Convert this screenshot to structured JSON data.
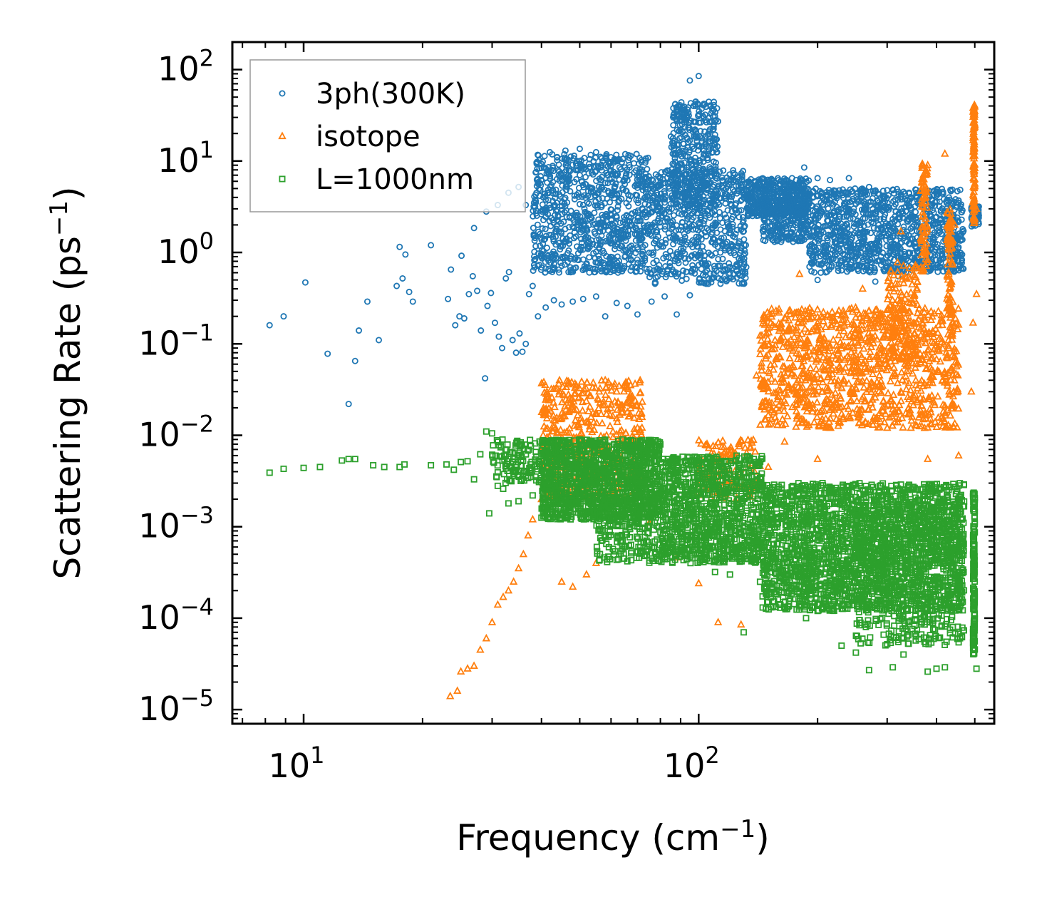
{
  "chart_data": {
    "type": "scatter",
    "title": "",
    "xlabel": "Frequency (cm",
    "xlabel_exp": "−1",
    "xlabel_end": ")",
    "ylabel": "Scattering Rate (ps",
    "ylabel_exp": "−1",
    "ylabel_end": ")",
    "xscale": "log",
    "yscale": "log",
    "xlim": [
      6.6,
      560
    ],
    "ylim": [
      7e-06,
      200
    ],
    "legend_position": "top-left",
    "x_ticks": [
      {
        "base": "10",
        "exp": "1",
        "value": 10
      },
      {
        "base": "10",
        "exp": "2",
        "value": 100
      }
    ],
    "y_ticks": [
      {
        "base": "10",
        "exp": "2",
        "value": 100
      },
      {
        "base": "10",
        "exp": "1",
        "value": 10
      },
      {
        "base": "10",
        "exp": "0",
        "value": 1
      },
      {
        "base": "10",
        "exp": "−1",
        "value": 0.1
      },
      {
        "base": "10",
        "exp": "−2",
        "value": 0.01
      },
      {
        "base": "10",
        "exp": "−3",
        "value": 0.001
      },
      {
        "base": "10",
        "exp": "−4",
        "value": 0.0001
      },
      {
        "base": "10",
        "exp": "−5",
        "value": 1e-05
      }
    ],
    "series": [
      {
        "name": "3ph(300K)",
        "marker": "circle",
        "color": "#1f77b4",
        "points": [
          [
            8.2,
            0.16
          ],
          [
            8.9,
            0.2
          ],
          [
            10.1,
            0.47
          ],
          [
            11.5,
            0.078
          ],
          [
            13,
            0.022
          ],
          [
            13.5,
            0.065
          ],
          [
            13.8,
            0.14
          ],
          [
            14.5,
            0.29
          ],
          [
            15.5,
            0.11
          ],
          [
            17.2,
            0.43
          ],
          [
            17.5,
            1.15
          ],
          [
            17.8,
            0.52
          ],
          [
            18.1,
            0.95
          ],
          [
            18.5,
            0.37
          ],
          [
            18.9,
            0.29
          ],
          [
            21,
            1.2
          ],
          [
            23.2,
            0.31
          ],
          [
            23.6,
            0.65
          ],
          [
            24.2,
            0.16
          ],
          [
            24.8,
            0.2
          ],
          [
            25.1,
            0.92
          ],
          [
            25.5,
            0.19
          ],
          [
            26.2,
            0.35
          ],
          [
            26.8,
            0.55
          ],
          [
            27.5,
            0.38
          ],
          [
            28.1,
            0.14
          ],
          [
            28.8,
            0.042
          ],
          [
            29.2,
            0.26
          ],
          [
            29.8,
            0.36
          ],
          [
            30.5,
            0.17
          ],
          [
            31.2,
            0.12
          ],
          [
            31.8,
            0.09
          ],
          [
            32.5,
            0.52
          ],
          [
            33.1,
            0.61
          ],
          [
            33.8,
            0.11
          ],
          [
            34.5,
            0.08
          ],
          [
            35.2,
            0.13
          ],
          [
            35.8,
            0.082
          ],
          [
            36.5,
            0.1
          ],
          [
            37.2,
            0.35
          ],
          [
            38,
            0.43
          ],
          [
            39.2,
            0.2
          ],
          [
            41,
            0.25
          ],
          [
            43,
            0.3
          ],
          [
            45,
            0.27
          ],
          [
            48,
            0.29
          ],
          [
            51,
            0.31
          ],
          [
            55,
            0.33
          ],
          [
            58,
            0.2
          ],
          [
            62,
            0.28
          ],
          [
            66,
            0.26
          ],
          [
            70,
            0.21
          ],
          [
            76,
            0.29
          ],
          [
            82,
            0.33
          ],
          [
            88,
            0.21
          ],
          [
            95,
            0.34
          ],
          [
            105,
            0.64
          ],
          [
            115,
            0.85
          ],
          [
            125,
            0.72
          ],
          [
            95,
            76
          ],
          [
            100,
            85
          ],
          [
            103,
            30
          ],
          [
            90,
            22
          ],
          [
            86,
            12
          ],
          [
            110,
            15
          ],
          [
            27,
            1.85
          ],
          [
            29,
            2.8
          ],
          [
            31,
            3.3
          ],
          [
            33,
            4.5
          ],
          [
            35,
            5.2
          ],
          [
            36.5,
            3.3
          ],
          [
            39,
            9.8
          ],
          [
            42,
            12.5
          ],
          [
            46,
            13
          ],
          [
            50,
            13.6
          ],
          [
            55,
            12.5
          ],
          [
            60,
            11
          ],
          [
            65,
            8.5
          ],
          [
            70,
            5.1
          ],
          [
            80,
            6.6
          ],
          [
            100,
            8.5
          ],
          [
            115,
            6.0
          ],
          [
            140,
            5.2
          ],
          [
            160,
            5.5
          ],
          [
            185,
            8.5
          ],
          [
            200,
            6.5
          ],
          [
            215,
            6.2
          ],
          [
            240,
            6.5
          ],
          [
            270,
            5.2
          ],
          [
            300,
            4.8
          ],
          [
            330,
            4.6
          ],
          [
            370,
            4.2
          ],
          [
            400,
            4.4
          ],
          [
            430,
            4.0
          ],
          [
            455,
            3.7
          ],
          [
            497,
            3.5
          ],
          [
            505,
            2.9
          ],
          [
            510,
            3.1
          ],
          [
            280,
            0.48
          ],
          [
            320,
            0.55
          ],
          [
            200,
            0.5
          ],
          [
            380,
            0.62
          ],
          [
            440,
            0.8
          ]
        ],
        "bands": [
          {
            "x_from": 38,
            "x_to": 75,
            "y_lo": 0.6,
            "y_hi": 12,
            "n": 900
          },
          {
            "x_from": 75,
            "x_to": 132,
            "y_lo": 0.45,
            "y_hi": 8,
            "n": 650
          },
          {
            "x_from": 85,
            "x_to": 112,
            "y_lo": 3,
            "y_hi": 45,
            "n": 380
          },
          {
            "x_from": 132,
            "x_to": 190,
            "y_lo": 2.5,
            "y_hi": 6.5,
            "n": 420
          },
          {
            "x_from": 145,
            "x_to": 190,
            "y_lo": 1.3,
            "y_hi": 4,
            "n": 260
          },
          {
            "x_from": 190,
            "x_to": 470,
            "y_lo": 0.6,
            "y_hi": 5.0,
            "n": 1100
          },
          {
            "x_from": 490,
            "x_to": 512,
            "y_lo": 1.9,
            "y_hi": 3.2,
            "n": 70
          }
        ]
      },
      {
        "name": "isotope",
        "marker": "triangle",
        "color": "#ff7f0e",
        "points": [
          [
            23.5,
            1.4e-05
          ],
          [
            24.5,
            1.6e-05
          ],
          [
            25,
            2.6e-05
          ],
          [
            26,
            2.8e-05
          ],
          [
            27,
            3e-05
          ],
          [
            28,
            4.5e-05
          ],
          [
            29,
            6e-05
          ],
          [
            30,
            9e-05
          ],
          [
            31,
            0.00014
          ],
          [
            32,
            0.00017
          ],
          [
            33,
            0.0002
          ],
          [
            34,
            0.00025
          ],
          [
            35,
            0.00035
          ],
          [
            36,
            0.0005
          ],
          [
            37,
            0.0008
          ],
          [
            38,
            0.0012
          ],
          [
            40,
            0.002
          ],
          [
            42,
            0.0035
          ],
          [
            45,
            0.006
          ],
          [
            50,
            0.01
          ],
          [
            55,
            0.017
          ],
          [
            58,
            0.04
          ],
          [
            62,
            0.03
          ],
          [
            66,
            0.018
          ],
          [
            70,
            0.012
          ],
          [
            45,
            0.00025
          ],
          [
            48,
            0.00022
          ],
          [
            52,
            0.0003
          ],
          [
            55,
            0.0004
          ],
          [
            140,
            0.045
          ],
          [
            150,
            0.05
          ],
          [
            180,
            0.58
          ],
          [
            200,
            0.15
          ],
          [
            260,
            0.4
          ],
          [
            325,
            1.7
          ],
          [
            380,
            9
          ],
          [
            420,
            12
          ],
          [
            445,
            2.0
          ],
          [
            495,
            38
          ],
          [
            500,
            25
          ],
          [
            505,
            3
          ],
          [
            495,
            0.17
          ],
          [
            505,
            0.35
          ],
          [
            490,
            0.03
          ],
          [
            455,
            0.006
          ],
          [
            420,
            0.021
          ],
          [
            380,
            0.0055
          ],
          [
            320,
            0.015
          ],
          [
            280,
            0.015
          ],
          [
            200,
            0.0055
          ],
          [
            165,
            0.0085
          ],
          [
            150,
            0.0045
          ],
          [
            143,
            0.0046
          ],
          [
            135,
            0.0027
          ],
          [
            128,
            8.5e-05
          ],
          [
            112,
            9e-05
          ],
          [
            100,
            0.00024
          ],
          [
            88,
            0.00046
          ],
          [
            75,
            0.0011
          ]
        ],
        "bands": [
          {
            "x_from": 40,
            "x_to": 72,
            "y_lo": 0.002,
            "y_hi": 0.04,
            "n": 500
          },
          {
            "x_from": 100,
            "x_to": 140,
            "y_lo": 0.002,
            "y_hi": 0.009,
            "n": 120
          },
          {
            "x_from": 143,
            "x_to": 455,
            "y_lo": 0.012,
            "y_hi": 0.25,
            "n": 1100
          },
          {
            "x_from": 300,
            "x_to": 360,
            "y_lo": 0.06,
            "y_hi": 0.8,
            "n": 140
          },
          {
            "x_from": 365,
            "x_to": 380,
            "y_lo": 0.6,
            "y_hi": 10,
            "n": 80
          },
          {
            "x_from": 425,
            "x_to": 440,
            "y_lo": 0.2,
            "y_hi": 3,
            "n": 80
          },
          {
            "x_from": 495,
            "x_to": 500,
            "y_lo": 2,
            "y_hi": 42,
            "n": 110
          }
        ]
      },
      {
        "name": "L=1000nm",
        "marker": "square",
        "color": "#2ca02c",
        "points": [
          [
            8.2,
            0.0039
          ],
          [
            8.9,
            0.0043
          ],
          [
            10,
            0.0044
          ],
          [
            11,
            0.0045
          ],
          [
            12.5,
            0.0053
          ],
          [
            13,
            0.0055
          ],
          [
            13.5,
            0.0055
          ],
          [
            15,
            0.0047
          ],
          [
            16,
            0.0045
          ],
          [
            17.5,
            0.0045
          ],
          [
            18,
            0.0048
          ],
          [
            21,
            0.0047
          ],
          [
            23,
            0.0048
          ],
          [
            24,
            0.0042
          ],
          [
            25,
            0.0051
          ],
          [
            26,
            0.0052
          ],
          [
            27,
            0.0033
          ],
          [
            28,
            0.0062
          ],
          [
            29,
            0.011
          ],
          [
            30,
            0.0105
          ],
          [
            31,
            0.0028
          ],
          [
            32,
            0.0026
          ],
          [
            33,
            0.0018
          ],
          [
            35,
            0.0019
          ],
          [
            38,
            0.0022
          ],
          [
            29.5,
            0.0014
          ],
          [
            130,
            7e-05
          ],
          [
            270,
            2.7e-05
          ],
          [
            310,
            2.9e-05
          ],
          [
            380,
            2.6e-05
          ],
          [
            400,
            2.8e-05
          ],
          [
            420,
            2.9e-05
          ],
          [
            505,
            2.8e-05
          ],
          [
            330,
            4e-05
          ],
          [
            230,
            5e-05
          ],
          [
            250,
            4.2e-05
          ],
          [
            110,
            0.00032
          ],
          [
            105,
            0.00045
          ],
          [
            120,
            0.0003
          ],
          [
            143,
            0.00025
          ],
          [
            165,
            0.00026
          ],
          [
            187,
            0.0001
          ],
          [
            200,
            0.00012
          ]
        ],
        "bands": [
          {
            "x_from": 30,
            "x_to": 40,
            "y_lo": 0.003,
            "y_hi": 0.009,
            "n": 120
          },
          {
            "x_from": 40,
            "x_to": 80,
            "y_lo": 0.0012,
            "y_hi": 0.009,
            "n": 1300
          },
          {
            "x_from": 55,
            "x_to": 80,
            "y_lo": 0.0004,
            "y_hi": 0.002,
            "n": 200
          },
          {
            "x_from": 80,
            "x_to": 145,
            "y_lo": 0.0004,
            "y_hi": 0.006,
            "n": 1000
          },
          {
            "x_from": 145,
            "x_to": 470,
            "y_lo": 0.00012,
            "y_hi": 0.003,
            "n": 2200
          },
          {
            "x_from": 250,
            "x_to": 470,
            "y_lo": 5e-05,
            "y_hi": 0.0015,
            "n": 500
          },
          {
            "x_from": 495,
            "x_to": 500,
            "y_lo": 4e-05,
            "y_hi": 0.0024,
            "n": 150
          }
        ]
      }
    ]
  }
}
